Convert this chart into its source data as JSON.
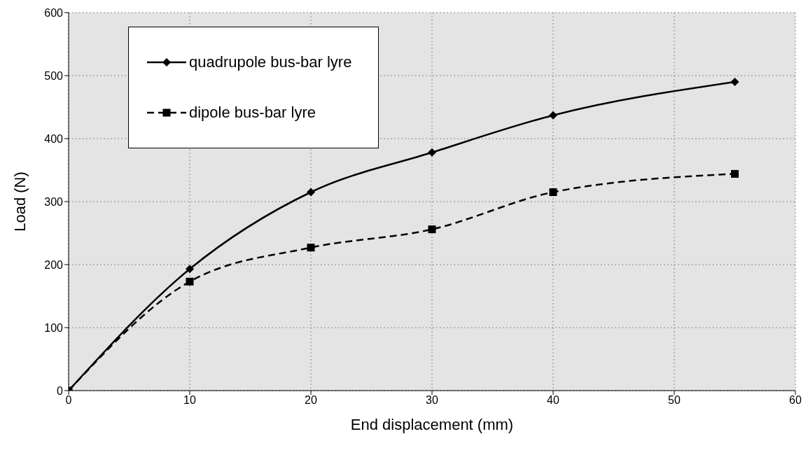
{
  "chart_data": {
    "type": "line",
    "xlabel": "End displacement (mm)",
    "ylabel": "Load (N)",
    "x": [
      0,
      10,
      20,
      30,
      40,
      55
    ],
    "series": [
      {
        "name": "quadrupole bus-bar lyre",
        "color": "#000000",
        "values": [
          0,
          193,
          315,
          378,
          437,
          490
        ],
        "marker": "diamond",
        "line_style": "solid"
      },
      {
        "name": "dipole bus-bar lyre",
        "color": "#000000",
        "values": [
          0,
          173,
          227,
          256,
          315,
          344
        ],
        "marker": "square",
        "line_style": "dashed"
      }
    ],
    "xlim": [
      0,
      60
    ],
    "xticks": [
      0,
      10,
      20,
      30,
      40,
      50,
      60
    ],
    "ylim": [
      0,
      600
    ],
    "yticks": [
      0,
      100,
      200,
      300,
      400,
      500,
      600
    ],
    "grid": true,
    "legend": "top left"
  }
}
